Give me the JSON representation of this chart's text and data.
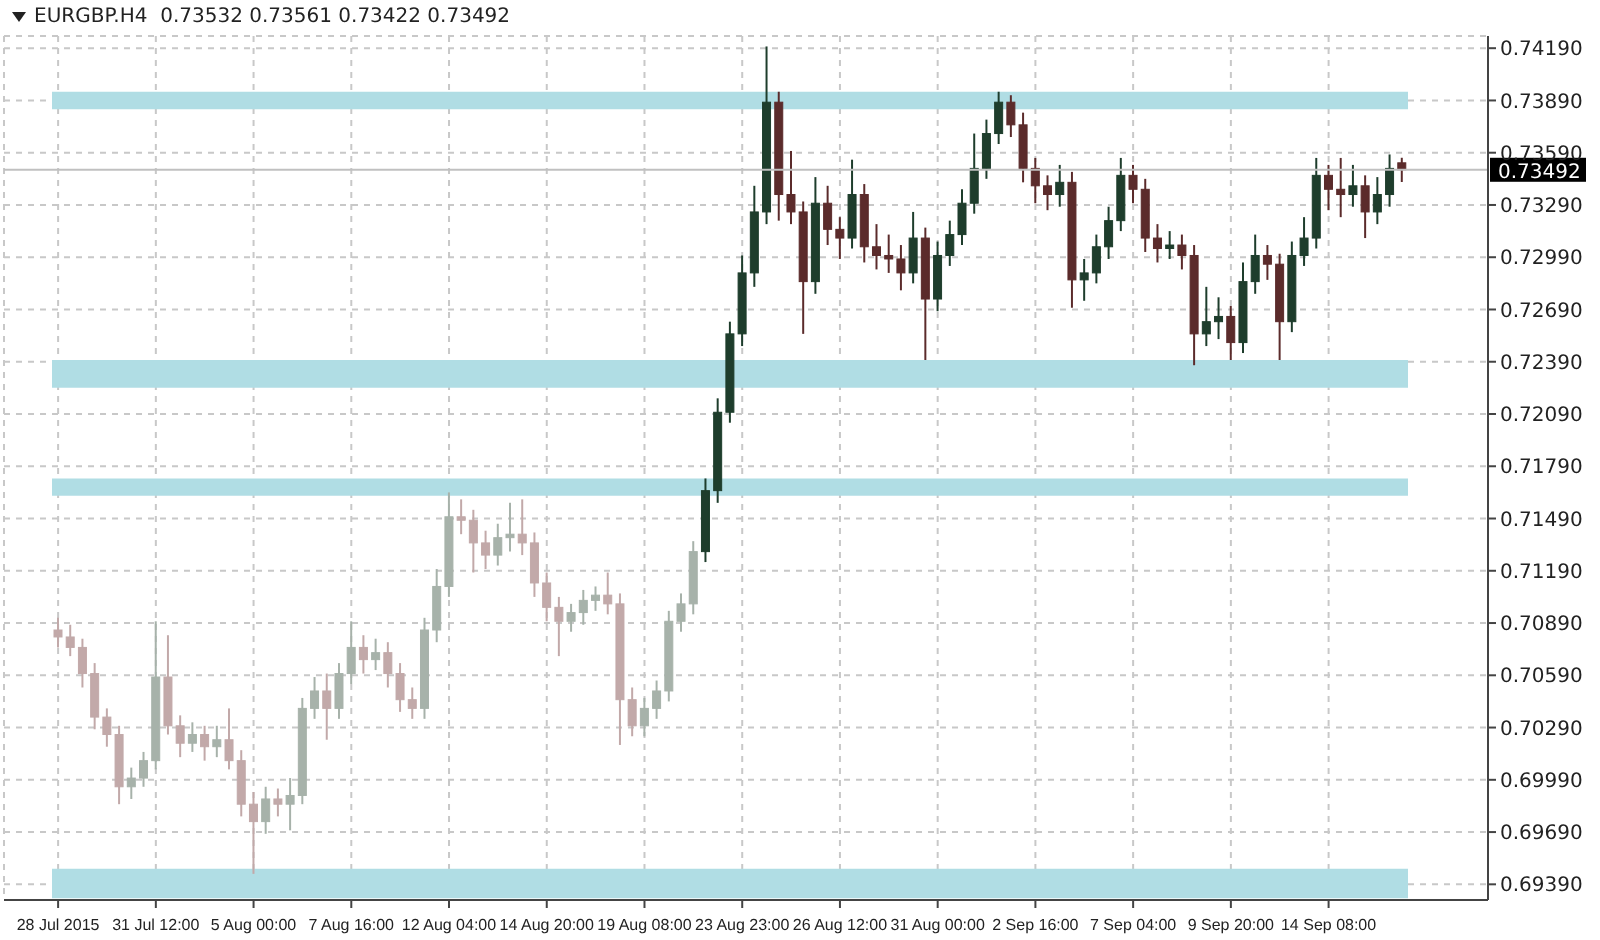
{
  "chart_data": {
    "type": "candlestick",
    "title": "EURGBP.H4  0.73532 0.73561 0.73422 0.73492",
    "categories": [
      "28 Jul 2015",
      null,
      null,
      null,
      null,
      null,
      null,
      null,
      "31 Jul 12:00",
      null,
      null,
      null,
      null,
      null,
      null,
      null,
      "5 Aug 00:00",
      null,
      null,
      null,
      null,
      null,
      null,
      null,
      "7 Aug 16:00",
      null,
      null,
      null,
      null,
      null,
      null,
      null,
      "12 Aug 04:00",
      null,
      null,
      null,
      null,
      null,
      null,
      null,
      "14 Aug 20:00",
      null,
      null,
      null,
      null,
      null,
      null,
      null,
      "19 Aug 08:00",
      null,
      null,
      null,
      null,
      null,
      null,
      null,
      "23 Aug 23:00",
      null,
      null,
      null,
      null,
      null,
      null,
      null,
      "26 Aug 12:00",
      null,
      null,
      null,
      null,
      null,
      null,
      null,
      "31 Aug 00:00",
      null,
      null,
      null,
      null,
      null,
      null,
      null,
      "2 Sep 16:00",
      null,
      null,
      null,
      null,
      null,
      null,
      null,
      "7 Sep 04:00",
      null,
      null,
      null,
      null,
      null,
      null,
      null,
      "9 Sep 20:00",
      null,
      null,
      null,
      null,
      null,
      null,
      null,
      "14 Sep 08:00",
      null,
      null,
      null,
      null,
      null,
      null
    ],
    "ohlc": [
      [
        0.7085,
        0.7092,
        0.7075,
        0.7081
      ],
      [
        0.7081,
        0.7088,
        0.707,
        0.7075
      ],
      [
        0.7075,
        0.708,
        0.7052,
        0.706
      ],
      [
        0.706,
        0.7066,
        0.7028,
        0.7035
      ],
      [
        0.7035,
        0.704,
        0.7018,
        0.7025
      ],
      [
        0.7025,
        0.703,
        0.6985,
        0.6995
      ],
      [
        0.6995,
        0.7006,
        0.6988,
        0.7
      ],
      [
        0.7,
        0.7015,
        0.6995,
        0.701
      ],
      [
        0.701,
        0.709,
        0.7005,
        0.7058
      ],
      [
        0.7058,
        0.7082,
        0.7025,
        0.703
      ],
      [
        0.703,
        0.7036,
        0.7012,
        0.702
      ],
      [
        0.702,
        0.7032,
        0.7015,
        0.7025
      ],
      [
        0.7025,
        0.703,
        0.701,
        0.7018
      ],
      [
        0.7018,
        0.703,
        0.7012,
        0.7022
      ],
      [
        0.7022,
        0.704,
        0.7005,
        0.701
      ],
      [
        0.701,
        0.7016,
        0.6978,
        0.6985
      ],
      [
        0.6985,
        0.6992,
        0.6945,
        0.6975
      ],
      [
        0.6975,
        0.6995,
        0.6968,
        0.6988
      ],
      [
        0.6988,
        0.6994,
        0.6978,
        0.6985
      ],
      [
        0.6985,
        0.7,
        0.697,
        0.699
      ],
      [
        0.699,
        0.7046,
        0.6985,
        0.704
      ],
      [
        0.704,
        0.7058,
        0.7034,
        0.705
      ],
      [
        0.705,
        0.706,
        0.7022,
        0.704
      ],
      [
        0.704,
        0.7066,
        0.7034,
        0.706
      ],
      [
        0.706,
        0.709,
        0.7054,
        0.7075
      ],
      [
        0.7075,
        0.7082,
        0.706,
        0.7068
      ],
      [
        0.7068,
        0.708,
        0.7062,
        0.7072
      ],
      [
        0.7072,
        0.7078,
        0.7052,
        0.706
      ],
      [
        0.706,
        0.7066,
        0.7038,
        0.7045
      ],
      [
        0.7045,
        0.7052,
        0.7034,
        0.704
      ],
      [
        0.704,
        0.7092,
        0.7034,
        0.7085
      ],
      [
        0.7085,
        0.712,
        0.7078,
        0.711
      ],
      [
        0.711,
        0.7164,
        0.7104,
        0.715
      ],
      [
        0.715,
        0.716,
        0.714,
        0.7148
      ],
      [
        0.7148,
        0.7154,
        0.7118,
        0.7135
      ],
      [
        0.7135,
        0.7142,
        0.712,
        0.7128
      ],
      [
        0.7128,
        0.7146,
        0.7122,
        0.7138
      ],
      [
        0.7138,
        0.7158,
        0.713,
        0.714
      ],
      [
        0.714,
        0.716,
        0.7128,
        0.7135
      ],
      [
        0.7135,
        0.7141,
        0.7104,
        0.7112
      ],
      [
        0.7112,
        0.7118,
        0.709,
        0.7098
      ],
      [
        0.7098,
        0.7104,
        0.707,
        0.709
      ],
      [
        0.709,
        0.71,
        0.7084,
        0.7095
      ],
      [
        0.7095,
        0.7108,
        0.7088,
        0.7102
      ],
      [
        0.7102,
        0.711,
        0.7096,
        0.7105
      ],
      [
        0.7105,
        0.7118,
        0.7094,
        0.71
      ],
      [
        0.71,
        0.7106,
        0.7019,
        0.7045
      ],
      [
        0.7045,
        0.7052,
        0.7024,
        0.703
      ],
      [
        0.703,
        0.7046,
        0.7024,
        0.704
      ],
      [
        0.704,
        0.7056,
        0.7034,
        0.705
      ],
      [
        0.705,
        0.7096,
        0.7044,
        0.709
      ],
      [
        0.709,
        0.7106,
        0.7084,
        0.71
      ],
      [
        0.71,
        0.7136,
        0.7094,
        0.713
      ],
      [
        0.713,
        0.7172,
        0.7124,
        0.7165
      ],
      [
        0.7165,
        0.7218,
        0.7158,
        0.721
      ],
      [
        0.721,
        0.7262,
        0.7204,
        0.7255
      ],
      [
        0.7255,
        0.73,
        0.7248,
        0.729
      ],
      [
        0.729,
        0.734,
        0.7282,
        0.7325
      ],
      [
        0.7325,
        0.742,
        0.7318,
        0.7388
      ],
      [
        0.7388,
        0.7394,
        0.732,
        0.7335
      ],
      [
        0.7335,
        0.736,
        0.7318,
        0.7325
      ],
      [
        0.7325,
        0.7331,
        0.7255,
        0.7285
      ],
      [
        0.7285,
        0.7345,
        0.7278,
        0.733
      ],
      [
        0.733,
        0.734,
        0.7306,
        0.7315
      ],
      [
        0.7315,
        0.7322,
        0.7298,
        0.731
      ],
      [
        0.731,
        0.7355,
        0.7304,
        0.7335
      ],
      [
        0.7335,
        0.7341,
        0.7296,
        0.7305
      ],
      [
        0.7305,
        0.7318,
        0.7292,
        0.73
      ],
      [
        0.73,
        0.7312,
        0.729,
        0.7298
      ],
      [
        0.7298,
        0.7306,
        0.728,
        0.729
      ],
      [
        0.729,
        0.7325,
        0.7284,
        0.731
      ],
      [
        0.731,
        0.7316,
        0.724,
        0.7275
      ],
      [
        0.7275,
        0.7308,
        0.7268,
        0.73
      ],
      [
        0.73,
        0.732,
        0.7294,
        0.7312
      ],
      [
        0.7312,
        0.7338,
        0.7306,
        0.733
      ],
      [
        0.733,
        0.737,
        0.7324,
        0.735
      ],
      [
        0.735,
        0.7378,
        0.7344,
        0.737
      ],
      [
        0.737,
        0.7394,
        0.7364,
        0.7388
      ],
      [
        0.7388,
        0.7392,
        0.7368,
        0.7375
      ],
      [
        0.7375,
        0.7382,
        0.7342,
        0.735
      ],
      [
        0.735,
        0.7356,
        0.733,
        0.734
      ],
      [
        0.734,
        0.7346,
        0.7326,
        0.7335
      ],
      [
        0.7335,
        0.7352,
        0.7328,
        0.7342
      ],
      [
        0.7342,
        0.7348,
        0.727,
        0.7286
      ],
      [
        0.7286,
        0.7298,
        0.7274,
        0.729
      ],
      [
        0.729,
        0.7312,
        0.7284,
        0.7305
      ],
      [
        0.7305,
        0.7328,
        0.7298,
        0.732
      ],
      [
        0.732,
        0.7356,
        0.7314,
        0.7346
      ],
      [
        0.7346,
        0.7352,
        0.733,
        0.7338
      ],
      [
        0.7338,
        0.7344,
        0.7302,
        0.731
      ],
      [
        0.731,
        0.7318,
        0.7296,
        0.7304
      ],
      [
        0.7304,
        0.7314,
        0.7298,
        0.7306
      ],
      [
        0.7306,
        0.7312,
        0.7292,
        0.73
      ],
      [
        0.73,
        0.7306,
        0.7237,
        0.7255
      ],
      [
        0.7255,
        0.7282,
        0.7248,
        0.7262
      ],
      [
        0.7262,
        0.7276,
        0.7252,
        0.7265
      ],
      [
        0.7265,
        0.7271,
        0.724,
        0.725
      ],
      [
        0.725,
        0.7296,
        0.7244,
        0.7285
      ],
      [
        0.7285,
        0.7312,
        0.7278,
        0.73
      ],
      [
        0.73,
        0.7306,
        0.7286,
        0.7295
      ],
      [
        0.7295,
        0.7301,
        0.724,
        0.7262
      ],
      [
        0.7262,
        0.7308,
        0.7256,
        0.73
      ],
      [
        0.73,
        0.7322,
        0.7294,
        0.731
      ],
      [
        0.731,
        0.7356,
        0.7304,
        0.7346
      ],
      [
        0.7346,
        0.7352,
        0.7326,
        0.7338
      ],
      [
        0.7338,
        0.7356,
        0.7322,
        0.7335
      ],
      [
        0.7335,
        0.7352,
        0.7328,
        0.734
      ],
      [
        0.734,
        0.7346,
        0.731,
        0.7325
      ],
      [
        0.7325,
        0.7345,
        0.7318,
        0.7335
      ],
      [
        0.7335,
        0.7358,
        0.7328,
        0.735
      ],
      [
        0.73532,
        0.73561,
        0.73422,
        0.73492
      ]
    ],
    "colors": [
      "#c2a9a9",
      "#c2a9a9",
      "#c2a9a9",
      "#c2a9a9",
      "#c2a9a9",
      "#c2a9a9",
      "#a7b2aa",
      "#a7b2aa",
      "#a7b2aa",
      "#c2a9a9",
      "#c2a9a9",
      "#a7b2aa",
      "#c2a9a9",
      "#a7b2aa",
      "#c2a9a9",
      "#c2a9a9",
      "#c2a9a9",
      "#a7b2aa",
      "#c2a9a9",
      "#a7b2aa",
      "#a7b2aa",
      "#a7b2aa",
      "#c2a9a9",
      "#a7b2aa",
      "#a7b2aa",
      "#c2a9a9",
      "#a7b2aa",
      "#c2a9a9",
      "#c2a9a9",
      "#c2a9a9",
      "#a7b2aa",
      "#a7b2aa",
      "#a7b2aa",
      "#c2a9a9",
      "#c2a9a9",
      "#c2a9a9",
      "#a7b2aa",
      "#a7b2aa",
      "#c2a9a9",
      "#c2a9a9",
      "#c2a9a9",
      "#c2a9a9",
      "#a7b2aa",
      "#a7b2aa",
      "#a7b2aa",
      "#c2a9a9",
      "#c2a9a9",
      "#c2a9a9",
      "#a7b2aa",
      "#a7b2aa",
      "#a7b2aa",
      "#a7b2aa",
      "#a7b2aa",
      "#1e3d2c",
      "#1e3d2c",
      "#1e3d2c",
      "#1e3d2c",
      "#1e3d2c",
      "#1e3d2c",
      "#5b2b2b",
      "#5b2b2b",
      "#5b2b2b",
      "#1e3d2c",
      "#5b2b2b",
      "#5b2b2b",
      "#1e3d2c",
      "#5b2b2b",
      "#5b2b2b",
      "#5b2b2b",
      "#5b2b2b",
      "#1e3d2c",
      "#5b2b2b",
      "#1e3d2c",
      "#1e3d2c",
      "#1e3d2c",
      "#1e3d2c",
      "#1e3d2c",
      "#1e3d2c",
      "#5b2b2b",
      "#5b2b2b",
      "#5b2b2b",
      "#5b2b2b",
      "#1e3d2c",
      "#5b2b2b",
      "#1e3d2c",
      "#1e3d2c",
      "#1e3d2c",
      "#1e3d2c",
      "#5b2b2b",
      "#5b2b2b",
      "#5b2b2b",
      "#1e3d2c",
      "#5b2b2b",
      "#5b2b2b",
      "#1e3d2c",
      "#1e3d2c",
      "#5b2b2b",
      "#1e3d2c",
      "#1e3d2c",
      "#5b2b2b",
      "#5b2b2b",
      "#1e3d2c",
      "#1e3d2c",
      "#1e3d2c",
      "#5b2b2b",
      "#5b2b2b",
      "#1e3d2c",
      "#5b2b2b",
      "#1e3d2c",
      "#1e3d2c",
      "#5b2b2b"
    ],
    "ylim": [
      0.693,
      0.7426
    ],
    "yticks": [
      {
        "value": 0.6939,
        "label": "0.69390"
      },
      {
        "value": 0.6969,
        "label": "0.69690"
      },
      {
        "value": 0.6999,
        "label": "0.69990"
      },
      {
        "value": 0.7029,
        "label": "0.70290"
      },
      {
        "value": 0.7059,
        "label": "0.70590"
      },
      {
        "value": 0.7089,
        "label": "0.70890"
      },
      {
        "value": 0.7119,
        "label": "0.71190"
      },
      {
        "value": 0.7149,
        "label": "0.71490"
      },
      {
        "value": 0.7179,
        "label": "0.71790"
      },
      {
        "value": 0.7209,
        "label": "0.72090"
      },
      {
        "value": 0.7239,
        "label": "0.72390"
      },
      {
        "value": 0.7269,
        "label": "0.72690"
      },
      {
        "value": 0.7299,
        "label": "0.72990"
      },
      {
        "value": 0.7329,
        "label": "0.73290"
      },
      {
        "value": 0.7359,
        "label": "0.73590"
      },
      {
        "value": 0.7389,
        "label": "0.73890"
      },
      {
        "value": 0.7419,
        "label": "0.74190"
      }
    ],
    "bands": [
      {
        "axis": "y",
        "from": 0.7384,
        "to": 0.7394,
        "color": "#b0dde4"
      },
      {
        "axis": "y",
        "from": 0.7224,
        "to": 0.724,
        "color": "#b0dde4"
      },
      {
        "axis": "y",
        "from": 0.7162,
        "to": 0.7172,
        "color": "#b0dde4"
      },
      {
        "axis": "y",
        "from": 0.6931,
        "to": 0.6948,
        "color": "#b0dde4"
      }
    ],
    "ref_lines": [
      {
        "axis": "y",
        "value": 0.73492,
        "label": "0.73492",
        "color": "#c0c0c0"
      }
    ],
    "grid": true
  }
}
